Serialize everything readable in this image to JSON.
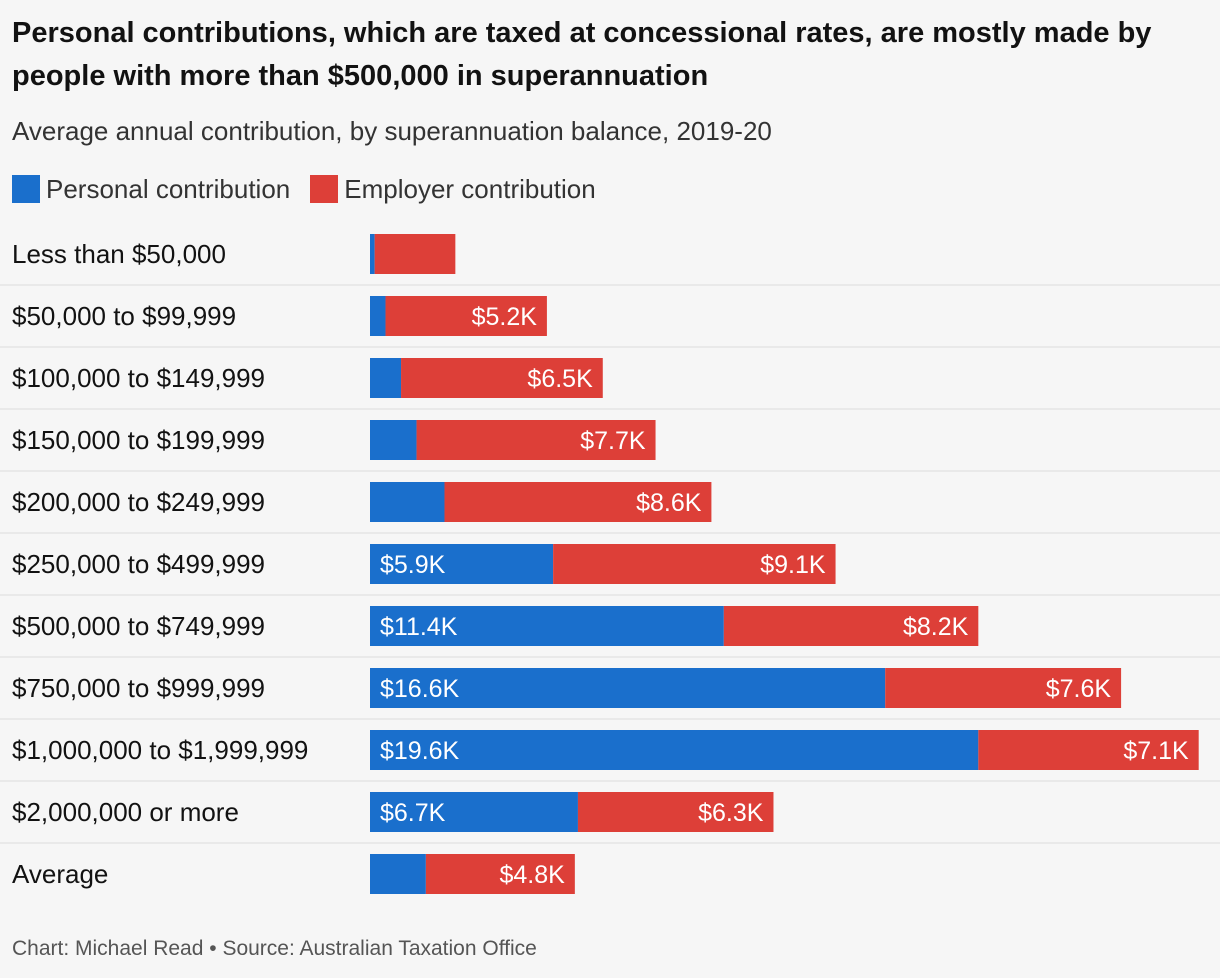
{
  "title": "Personal contributions, which are taxed at concessional rates, are mostly made by people with more than $500,000 in superannuation",
  "subtitle": "Average annual contribution, by superannuation balance, 2019-20",
  "footer": "Chart: Michael Read • Source: Australian Taxation Office",
  "colors": {
    "personal": "#1a6fcc",
    "employer": "#dd3f38",
    "gridline": "#dcdcdc",
    "label_text": "#ffffff",
    "category_text": "#121212"
  },
  "chart_data": {
    "type": "bar",
    "orientation": "horizontal",
    "stacked": true,
    "unit": "$",
    "xlim": [
      0,
      27000
    ],
    "grid": true,
    "legend_position": "top-left",
    "categories": [
      "Less than $50,000",
      "$50,000 to $99,999",
      "$100,000 to $149,999",
      "$150,000 to $199,999",
      "$200,000 to $249,999",
      "$250,000 to $499,999",
      "$500,000 to $749,999",
      "$750,000 to $999,999",
      "$1,000,000 to $1,999,999",
      "$2,000,000 or more",
      "Average"
    ],
    "series": [
      {
        "name": "Personal contribution",
        "color": "#1a6fcc",
        "values": [
          150,
          500,
          1000,
          1500,
          2400,
          5900,
          11400,
          16600,
          19600,
          6700,
          1800
        ],
        "labels": [
          "",
          "",
          "",
          "",
          "",
          "$5.9K",
          "$11.4K",
          "$16.6K",
          "$19.6K",
          "$6.7K",
          ""
        ]
      },
      {
        "name": "Employer contribution",
        "color": "#dd3f38",
        "values": [
          2600,
          5200,
          6500,
          7700,
          8600,
          9100,
          8200,
          7600,
          7100,
          6300,
          4800
        ],
        "labels": [
          "",
          "$5.2K",
          "$6.5K",
          "$7.7K",
          "$8.6K",
          "$9.1K",
          "$8.2K",
          "$7.6K",
          "$7.1K",
          "$6.3K",
          "$4.8K"
        ]
      }
    ]
  }
}
